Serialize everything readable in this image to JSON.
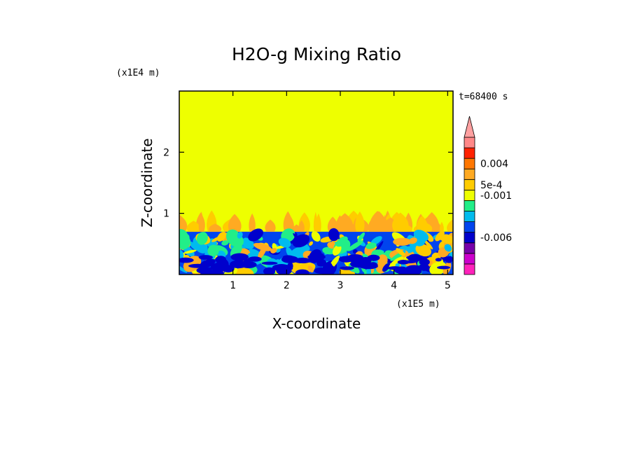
{
  "chart_data": {
    "type": "heatmap",
    "title": "H2O-g Mixing Ratio",
    "xlabel": "X-coordinate",
    "ylabel": "Z-coordinate",
    "x_scale_label": "(x1E5 m)",
    "y_scale_label": "(x1E4 m)",
    "time_label": "t=68400 s",
    "xlim": [
      0,
      5.1
    ],
    "ylim": [
      0,
      3.0
    ],
    "x_ticks": [
      {
        "value": 1,
        "label": "1"
      },
      {
        "value": 2,
        "label": "2"
      },
      {
        "value": 3,
        "label": "3"
      },
      {
        "value": 4,
        "label": "4"
      },
      {
        "value": 5,
        "label": "5"
      }
    ],
    "y_ticks": [
      {
        "value": 1,
        "label": "1"
      },
      {
        "value": 2,
        "label": "2"
      }
    ],
    "background_color": "#eeff00",
    "boundary_layer_top": 0.7,
    "plume_top": 1.05,
    "colorbar": {
      "colors": [
        "#ff22bb",
        "#cc00cc",
        "#7700aa",
        "#0000cc",
        "#0044ee",
        "#00bbee",
        "#22ee88",
        "#eeff00",
        "#ffcc00",
        "#ffaa22",
        "#ff7700",
        "#ff2200",
        "#ff8888"
      ],
      "extend_top_color": "#ffa0a0",
      "tick_labels": [
        {
          "label": "0.004",
          "level": 10.5
        },
        {
          "label": "5e-4",
          "level": 8.5
        },
        {
          "label": "-0.001",
          "level": 7.5
        },
        {
          "label": "-0.006",
          "level": 3.5
        }
      ]
    }
  }
}
